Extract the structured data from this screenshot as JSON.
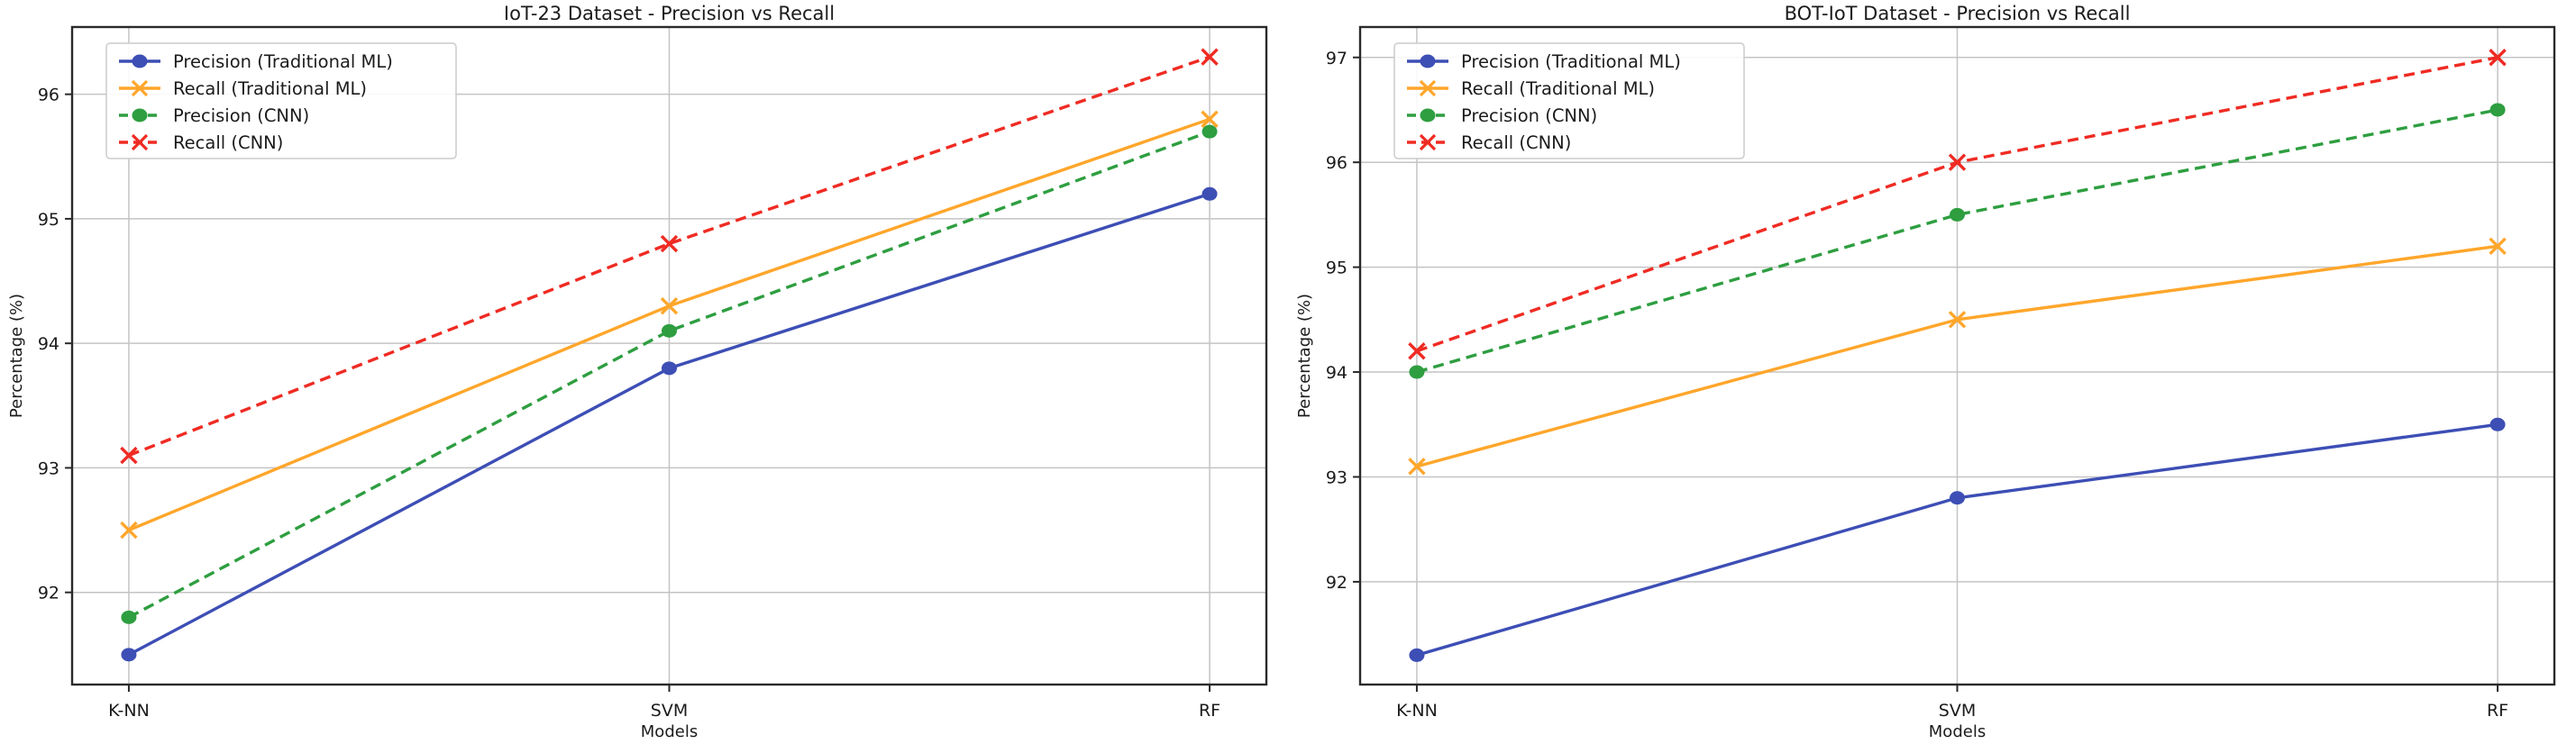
{
  "figure": {
    "background": "#ffffff",
    "grid_color": "#c4c4c4",
    "spine_color": "#2a2a2a",
    "text_color": "#1c1c1c"
  },
  "chart_data": [
    {
      "type": "line",
      "title": "IoT-23 Dataset - Precision vs Recall",
      "xlabel": "Models",
      "ylabel": "Percentage (%)",
      "categories": [
        "K-NN",
        "SVM",
        "RF"
      ],
      "yticks": [
        92,
        93,
        94,
        95,
        96
      ],
      "ylim": [
        91.26,
        96.54
      ],
      "grid": true,
      "legend_position": "upper-left",
      "series": [
        {
          "name": "Precision (Traditional ML)",
          "values": [
            91.5,
            93.8,
            95.2
          ],
          "color": "#3d4eb5",
          "style": "solid",
          "marker": "circle"
        },
        {
          "name": "Recall (Traditional ML)",
          "values": [
            92.5,
            94.3,
            95.8
          ],
          "color": "#ffa62b",
          "style": "solid",
          "marker": "x"
        },
        {
          "name": "Precision (CNN)",
          "values": [
            91.8,
            94.1,
            95.7
          ],
          "color": "#2e9e40",
          "style": "dashed",
          "marker": "circle"
        },
        {
          "name": "Recall (CNN)",
          "values": [
            93.1,
            94.8,
            96.3
          ],
          "color": "#ef2b23",
          "style": "dashed",
          "marker": "x"
        }
      ]
    },
    {
      "type": "line",
      "title": "BOT-IoT Dataset - Precision vs Recall",
      "xlabel": "Models",
      "ylabel": "Percentage (%)",
      "categories": [
        "K-NN",
        "SVM",
        "RF"
      ],
      "yticks": [
        92,
        93,
        94,
        95,
        96,
        97
      ],
      "ylim": [
        91.02,
        97.29
      ],
      "grid": true,
      "legend_position": "upper-left",
      "series": [
        {
          "name": "Precision (Traditional ML)",
          "values": [
            91.3,
            92.8,
            93.5
          ],
          "color": "#3d4eb5",
          "style": "solid",
          "marker": "circle"
        },
        {
          "name": "Recall (Traditional ML)",
          "values": [
            93.1,
            94.5,
            95.2
          ],
          "color": "#ffa62b",
          "style": "solid",
          "marker": "x"
        },
        {
          "name": "Precision (CNN)",
          "values": [
            94.0,
            95.5,
            96.5
          ],
          "color": "#2e9e40",
          "style": "dashed",
          "marker": "circle"
        },
        {
          "name": "Recall (CNN)",
          "values": [
            94.2,
            96.0,
            97.0
          ],
          "color": "#ef2b23",
          "style": "dashed",
          "marker": "x"
        }
      ]
    }
  ]
}
